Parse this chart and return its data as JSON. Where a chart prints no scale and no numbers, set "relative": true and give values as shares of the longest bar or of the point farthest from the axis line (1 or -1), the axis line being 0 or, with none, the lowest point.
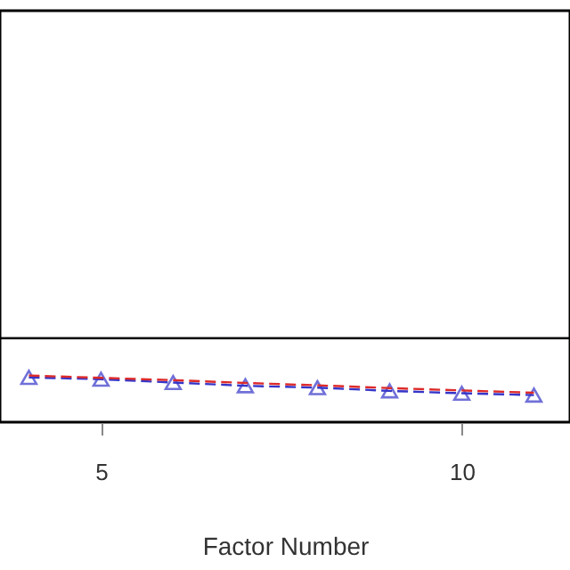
{
  "chart_data": {
    "type": "line",
    "xlabel": "Factor Number",
    "relative": true,
    "x": [
      4,
      5,
      6,
      7,
      8,
      9,
      10,
      11
    ],
    "xlim": [
      3.6,
      11.5
    ],
    "xticks": [
      5,
      10
    ],
    "series": [
      {
        "color": "#3535c8",
        "values": [
          0.96,
          0.92,
          0.85,
          0.78,
          0.74,
          0.67,
          0.62,
          0.58
        ],
        "marker": "triangle",
        "line_style": "dashed"
      },
      {
        "color": "#dd2a2a",
        "values": [
          1,
          0.95,
          0.9,
          0.84,
          0.79,
          0.73,
          0.68,
          0.63
        ],
        "marker": "none",
        "line_style": "dashed"
      }
    ],
    "ref_lines": [
      {
        "axis": "y",
        "value": 1.8,
        "color": "#000000"
      }
    ],
    "grid": false
  }
}
